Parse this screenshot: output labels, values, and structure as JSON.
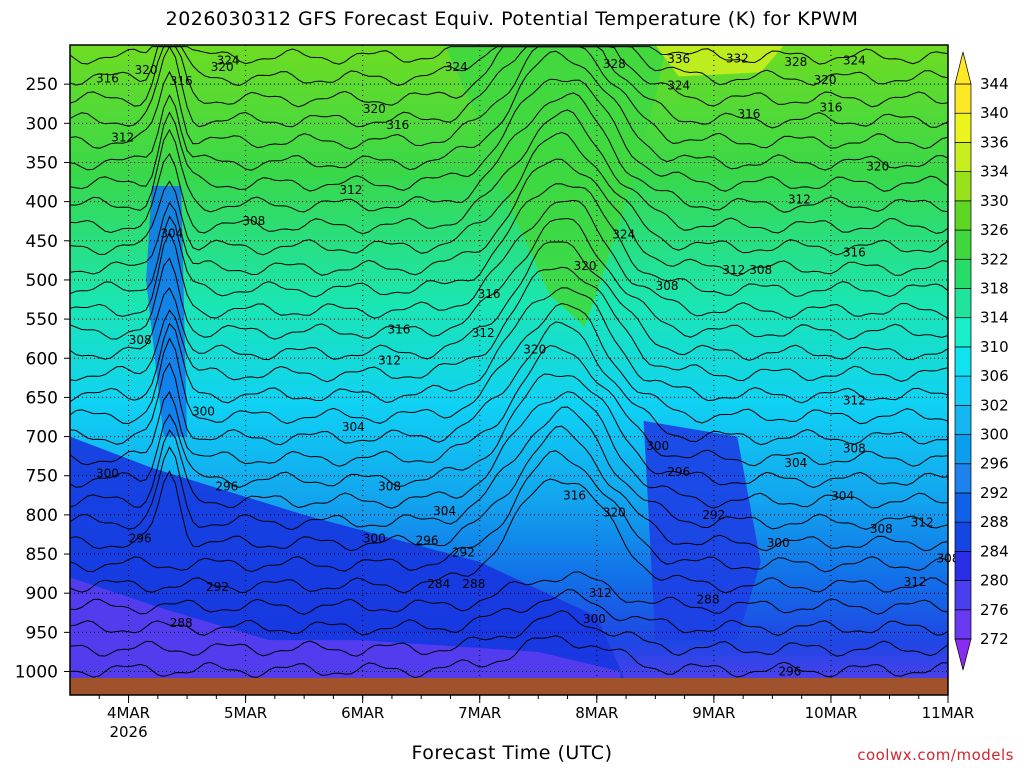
{
  "title": "2026030312 GFS Forecast Equiv. Potential Temperature (K) for KPWM",
  "xlabel": "Forecast Time (UTC)",
  "credit": "coolwx.com/models",
  "chart_data": {
    "type": "heatmap",
    "y_axis": {
      "ticks": [
        250,
        300,
        350,
        400,
        450,
        500,
        550,
        600,
        650,
        700,
        750,
        800,
        850,
        900,
        950,
        1000
      ],
      "range_hPa": [
        200,
        1030
      ],
      "reversed": true
    },
    "x_axis": {
      "ticks": [
        "4MAR",
        "5MAR",
        "6MAR",
        "7MAR",
        "8MAR",
        "9MAR",
        "10MAR",
        "11MAR"
      ],
      "year_label": "2026",
      "range_days": [
        3.5,
        11
      ]
    },
    "colorbar": {
      "levels": [
        272,
        276,
        280,
        284,
        288,
        292,
        296,
        300,
        302,
        306,
        310,
        314,
        318,
        322,
        326,
        330,
        334,
        336,
        340,
        344
      ],
      "colors": [
        "#8a2bf0",
        "#6a3af2",
        "#4a3fee",
        "#2a2fe6",
        "#1446e4",
        "#1060e8",
        "#1e82ee",
        "#0a9eee",
        "#14b6f2",
        "#12cef6",
        "#10e2f0",
        "#18eec8",
        "#1ee49c",
        "#28dc6a",
        "#3ed83e",
        "#5ed624",
        "#98e21c",
        "#c8ee1e",
        "#ecf41e",
        "#fde826"
      ]
    },
    "contour_labels": [
      {
        "v": "324",
        "t": 4.85,
        "p": 220
      },
      {
        "v": "320",
        "t": 4.15,
        "p": 232
      },
      {
        "v": "320",
        "t": 4.8,
        "p": 228
      },
      {
        "v": "316",
        "t": 3.82,
        "p": 243
      },
      {
        "v": "316",
        "t": 4.45,
        "p": 246
      },
      {
        "v": "324",
        "t": 6.8,
        "p": 228
      },
      {
        "v": "328",
        "t": 8.15,
        "p": 224
      },
      {
        "v": "336",
        "t": 8.7,
        "p": 218
      },
      {
        "v": "332",
        "t": 9.2,
        "p": 217
      },
      {
        "v": "328",
        "t": 9.7,
        "p": 222
      },
      {
        "v": "324",
        "t": 10.2,
        "p": 220
      },
      {
        "v": "324",
        "t": 8.7,
        "p": 252
      },
      {
        "v": "320",
        "t": 9.95,
        "p": 245
      },
      {
        "v": "320",
        "t": 6.1,
        "p": 282
      },
      {
        "v": "316",
        "t": 9.3,
        "p": 288
      },
      {
        "v": "316",
        "t": 10.0,
        "p": 280
      },
      {
        "v": "316",
        "t": 6.3,
        "p": 302
      },
      {
        "v": "312",
        "t": 3.95,
        "p": 318
      },
      {
        "v": "320",
        "t": 10.4,
        "p": 355
      },
      {
        "v": "312",
        "t": 5.9,
        "p": 385
      },
      {
        "v": "312",
        "t": 9.73,
        "p": 397
      },
      {
        "v": "308",
        "t": 5.07,
        "p": 425
      },
      {
        "v": "304",
        "t": 4.37,
        "p": 441
      },
      {
        "v": "324",
        "t": 8.23,
        "p": 442
      },
      {
        "v": "316",
        "t": 10.2,
        "p": 465
      },
      {
        "v": "320",
        "t": 7.9,
        "p": 482
      },
      {
        "v": "312",
        "t": 9.17,
        "p": 487
      },
      {
        "v": "308",
        "t": 9.4,
        "p": 487
      },
      {
        "v": "308",
        "t": 8.6,
        "p": 508
      },
      {
        "v": "316",
        "t": 7.08,
        "p": 518
      },
      {
        "v": "316",
        "t": 6.31,
        "p": 563
      },
      {
        "v": "312",
        "t": 7.03,
        "p": 568
      },
      {
        "v": "308",
        "t": 4.1,
        "p": 577
      },
      {
        "v": "320",
        "t": 7.47,
        "p": 589
      },
      {
        "v": "312",
        "t": 6.23,
        "p": 603
      },
      {
        "v": "312",
        "t": 10.2,
        "p": 654
      },
      {
        "v": "300",
        "t": 4.64,
        "p": 668
      },
      {
        "v": "304",
        "t": 5.92,
        "p": 688
      },
      {
        "v": "300",
        "t": 8.52,
        "p": 712
      },
      {
        "v": "308",
        "t": 10.2,
        "p": 715
      },
      {
        "v": "304",
        "t": 9.7,
        "p": 734
      },
      {
        "v": "296",
        "t": 8.7,
        "p": 745
      },
      {
        "v": "300",
        "t": 3.82,
        "p": 747
      },
      {
        "v": "296",
        "t": 4.84,
        "p": 764
      },
      {
        "v": "308",
        "t": 6.23,
        "p": 764
      },
      {
        "v": "316",
        "t": 7.81,
        "p": 775
      },
      {
        "v": "304",
        "t": 10.1,
        "p": 776
      },
      {
        "v": "304",
        "t": 6.7,
        "p": 795
      },
      {
        "v": "320",
        "t": 8.15,
        "p": 797
      },
      {
        "v": "292",
        "t": 9.0,
        "p": 800
      },
      {
        "v": "312",
        "t": 10.78,
        "p": 810
      },
      {
        "v": "308",
        "t": 10.43,
        "p": 818
      },
      {
        "v": "296",
        "t": 4.1,
        "p": 830
      },
      {
        "v": "300",
        "t": 6.1,
        "p": 830
      },
      {
        "v": "296",
        "t": 6.55,
        "p": 833
      },
      {
        "v": "300",
        "t": 9.55,
        "p": 836
      },
      {
        "v": "292",
        "t": 6.86,
        "p": 848
      },
      {
        "v": "308",
        "t": 11.0,
        "p": 856
      },
      {
        "v": "312",
        "t": 10.72,
        "p": 886
      },
      {
        "v": "292",
        "t": 4.76,
        "p": 892
      },
      {
        "v": "284",
        "t": 6.65,
        "p": 888
      },
      {
        "v": "288",
        "t": 6.95,
        "p": 888
      },
      {
        "v": "312",
        "t": 8.03,
        "p": 900
      },
      {
        "v": "288",
        "t": 8.95,
        "p": 908
      },
      {
        "v": "300",
        "t": 7.98,
        "p": 933
      },
      {
        "v": "288",
        "t": 4.45,
        "p": 938
      },
      {
        "v": "296",
        "t": 9.65,
        "p": 1000
      }
    ]
  }
}
